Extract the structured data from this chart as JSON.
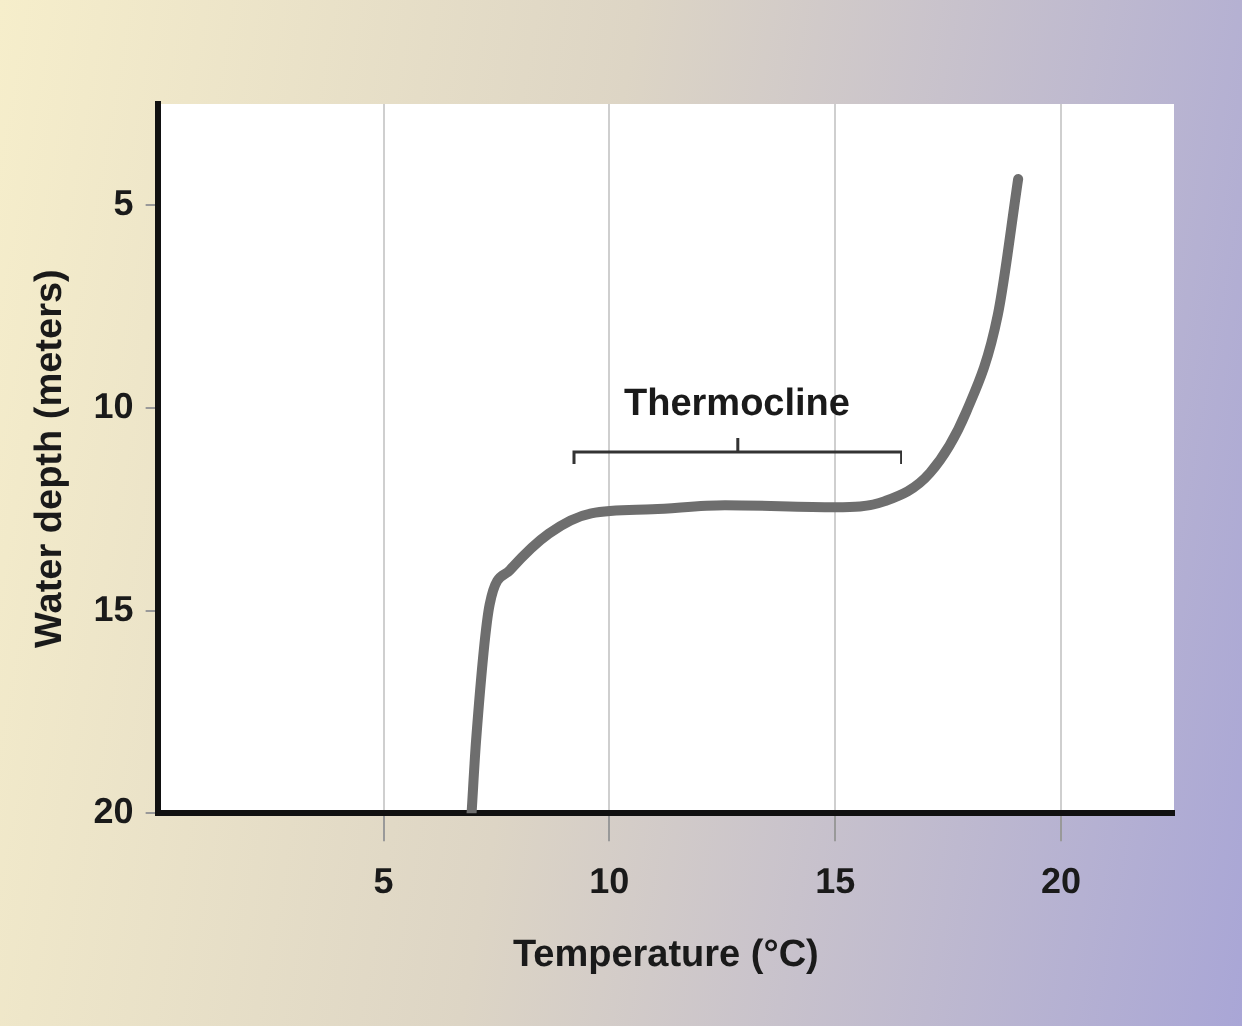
{
  "chart_data": {
    "type": "line",
    "xlabel": "Temperature (°C)",
    "ylabel": "Water depth (meters)",
    "x": [
      6.95,
      7.05,
      7.35,
      7.8,
      8.66,
      9.6,
      10.95,
      12.56,
      15,
      16.1,
      17.1,
      17.9,
      18.6,
      19.05
    ],
    "series": [
      {
        "color": "#6e6e6e",
        "values": [
          20,
          18.2,
          14.85,
          14.0,
          13.1,
          12.6,
          12.5,
          12.4,
          12.45,
          12.3,
          11.6,
          10.1,
          7.7,
          4.35
        ]
      }
    ],
    "xlim": [
      0,
      22.5
    ],
    "xticks": [
      5,
      10,
      15,
      20
    ],
    "ylim": [
      20,
      2.5
    ],
    "yticks": [
      5,
      10,
      15,
      20
    ],
    "grid": "x",
    "marker": "none",
    "line_style": "solid",
    "annotations": [
      "Thermocline"
    ]
  }
}
